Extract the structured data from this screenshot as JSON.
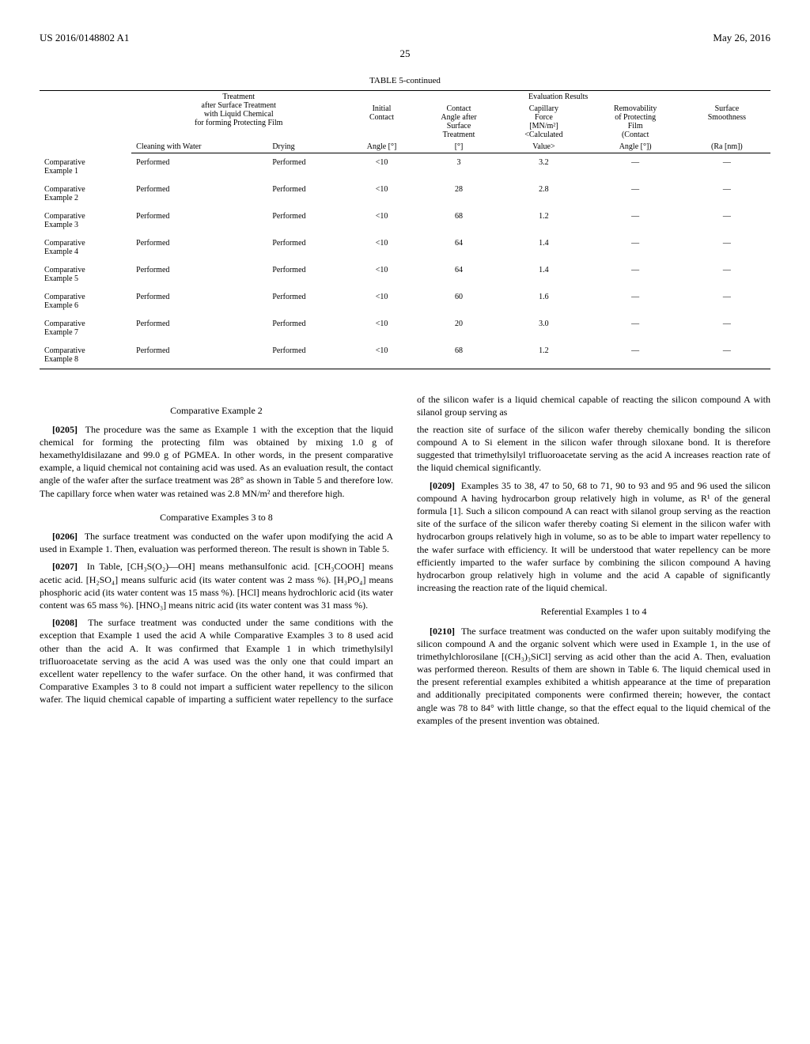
{
  "header": {
    "left": "US 2016/0148802 A1",
    "right": "May 26, 2016",
    "pagenum": "25"
  },
  "table": {
    "title": "TABLE 5-continued",
    "head": {
      "eval_results": "Evaluation Results",
      "treatment_block": "Treatment\nafter Surface Treatment\nwith Liquid Chemical\nfor forming Protecting Film",
      "cleaning": "Cleaning with Water",
      "drying": "Drying",
      "initial_contact": "Initial\nContact",
      "angle_deg": "Angle [°]",
      "contact_after": "Contact\nAngle after\nSurface\nTreatment",
      "deg": "[°]",
      "capillary": "Capillary\nForce\n[MN/m²]\n<Calculated",
      "value": "Value>",
      "removability": "Removability\nof Protecting\nFilm\n(Contact",
      "angle_deg2": "Angle [°])",
      "surface_smooth": "Surface\nSmoothness",
      "ra": "(Ra [nm])"
    },
    "rows": [
      {
        "name": "Comparative\nExample 1",
        "cw": "Performed",
        "dr": "Performed",
        "ic": "<10",
        "ca": "3",
        "cap": "3.2",
        "rem": "—",
        "ss": "—"
      },
      {
        "name": "Comparative\nExample 2",
        "cw": "Performed",
        "dr": "Performed",
        "ic": "<10",
        "ca": "28",
        "cap": "2.8",
        "rem": "—",
        "ss": "—"
      },
      {
        "name": "Comparative\nExample 3",
        "cw": "Performed",
        "dr": "Performed",
        "ic": "<10",
        "ca": "68",
        "cap": "1.2",
        "rem": "—",
        "ss": "—"
      },
      {
        "name": "Comparative\nExample 4",
        "cw": "Performed",
        "dr": "Performed",
        "ic": "<10",
        "ca": "64",
        "cap": "1.4",
        "rem": "—",
        "ss": "—"
      },
      {
        "name": "Comparative\nExample 5",
        "cw": "Performed",
        "dr": "Performed",
        "ic": "<10",
        "ca": "64",
        "cap": "1.4",
        "rem": "—",
        "ss": "—"
      },
      {
        "name": "Comparative\nExample 6",
        "cw": "Performed",
        "dr": "Performed",
        "ic": "<10",
        "ca": "60",
        "cap": "1.6",
        "rem": "—",
        "ss": "—"
      },
      {
        "name": "Comparative\nExample 7",
        "cw": "Performed",
        "dr": "Performed",
        "ic": "<10",
        "ca": "20",
        "cap": "3.0",
        "rem": "—",
        "ss": "—"
      },
      {
        "name": "Comparative\nExample 8",
        "cw": "Performed",
        "dr": "Performed",
        "ic": "<10",
        "ca": "68",
        "cap": "1.2",
        "rem": "—",
        "ss": "—"
      }
    ]
  },
  "body": {
    "sec_ce2": "Comparative Example 2",
    "p0205_num": "[0205]",
    "p0205": "The procedure was the same as Example 1 with the exception that the liquid chemical for forming the protecting film was obtained by mixing 1.0 g of hexamethyldisilazane and 99.0 g of PGMEA. In other words, in the present comparative example, a liquid chemical not containing acid was used. As an evaluation result, the contact angle of the wafer after the surface treatment was 28° as shown in Table 5 and therefore low. The capillary force when water was retained was 2.8 MN/m² and therefore high.",
    "sec_ce38": "Comparative Examples 3 to 8",
    "p0206_num": "[0206]",
    "p0206": "The surface treatment was conducted on the wafer upon modifying the acid A used in Example 1. Then, evaluation was performed thereon. The result is shown in Table 5.",
    "p0207_num": "[0207]",
    "p0207": "In Table, [CH₃S(O₂)—OH] means methansulfonic acid. [CH₃COOH] means acetic acid. [H₂SO₄] means sulfuric acid (its water content was 2 mass %). [H₃PO₄] means phosphoric acid (its water content was 15 mass %). [HCl] means hydrochloric acid (its water content was 65 mass %). [HNO₃] means nitric acid (its water content was 31 mass %).",
    "p0208_num": "[0208]",
    "p0208": "The surface treatment was conducted under the same conditions with the exception that Example 1 used the acid A while Comparative Examples 3 to 8 used acid other than the acid A. It was confirmed that Example 1 in which trimethylsilyl trifluoroacetate serving as the acid A was used was the only one that could impart an excellent water repellency to the wafer surface. On the other hand, it was confirmed that Comparative Examples 3 to 8 could not impart a sufficient water repellency to the silicon wafer. The liquid chemical capable of imparting a sufficient water repellency to the surface of the silicon wafer is a liquid chemical capable of reacting the silicon compound A with silanol group serving as",
    "p_right1": "the reaction site of surface of the silicon wafer thereby chemically bonding the silicon compound A to Si element in the silicon wafer through siloxane bond. It is therefore suggested that trimethylsilyl trifluoroacetate serving as the acid A increases reaction rate of the liquid chemical significantly.",
    "p0209_num": "[0209]",
    "p0209": "Examples 35 to 38, 47 to 50, 68 to 71, 90 to 93 and 95 and 96 used the silicon compound A having hydrocarbon group relatively high in volume, as R¹ of the general formula [1]. Such a silicon compound A can react with silanol group serving as the reaction site of the surface of the silicon wafer thereby coating Si element in the silicon wafer with hydrocarbon groups relatively high in volume, so as to be able to impart water repellency to the wafer surface with efficiency. It will be understood that water repellency can be more efficiently imparted to the wafer surface by combining the silicon compound A having hydrocarbon group relatively high in volume and the acid A capable of significantly increasing the reaction rate of the liquid chemical.",
    "sec_ref": "Referential Examples 1 to 4",
    "p0210_num": "[0210]",
    "p0210": "The surface treatment was conducted on the wafer upon suitably modifying the silicon compound A and the organic solvent which were used in Example 1, in the use of trimethylchlorosilane [(CH₃)₃SiCl] serving as acid other than the acid A. Then, evaluation was performed thereon. Results of them are shown in Table 6. The liquid chemical used in the present referential examples exhibited a whitish appearance at the time of preparation and additionally precipitated components were confirmed therein; however, the contact angle was 78 to 84° with little change, so that the effect equal to the liquid chemical of the examples of the present invention was obtained."
  }
}
